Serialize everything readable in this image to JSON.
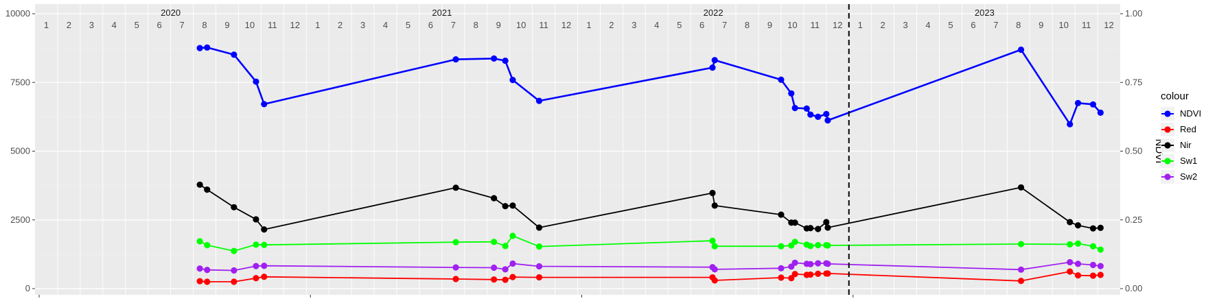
{
  "chart_data": {
    "type": "line",
    "ylim": [
      0,
      10000
    ],
    "y_ticks": [
      0,
      2500,
      5000,
      7500,
      10000
    ],
    "y_tick_labels": [
      "0",
      "2500",
      "5000",
      "7500",
      "10000"
    ],
    "y2_label": "NDVI",
    "y2_ticks": [
      0.0,
      0.25,
      0.5,
      0.75,
      1.0
    ],
    "y2_tick_labels": [
      "0.00",
      "0.25",
      "0.50",
      "0.75",
      "1.00"
    ],
    "y2_scale": 10000,
    "years": [
      "2020",
      "2021",
      "2022",
      "2023"
    ],
    "months": [
      "1",
      "2",
      "3",
      "4",
      "5",
      "6",
      "7",
      "8",
      "9",
      "10",
      "11",
      "12"
    ],
    "vline_date": "2023-01-01",
    "legend_title": "colour",
    "legend_position": "right",
    "grid": true,
    "series": [
      {
        "name": "NDVI",
        "color": "#0000ff",
        "axis": "right",
        "points": [
          [
            "2020-08-10",
            0.875
          ],
          [
            "2020-08-20",
            0.877
          ],
          [
            "2020-09-25",
            0.851
          ],
          [
            "2020-10-25",
            0.753
          ],
          [
            "2020-11-05",
            0.671
          ],
          [
            "2021-07-20",
            0.834
          ],
          [
            "2021-09-10",
            0.837
          ],
          [
            "2021-09-25",
            0.829
          ],
          [
            "2021-10-05",
            0.759
          ],
          [
            "2021-11-10",
            0.683
          ],
          [
            "2022-06-30",
            0.804
          ],
          [
            "2022-07-03",
            0.831
          ],
          [
            "2022-10-01",
            0.76
          ],
          [
            "2022-10-15",
            0.71
          ],
          [
            "2022-10-20",
            0.657
          ],
          [
            "2022-11-05",
            0.655
          ],
          [
            "2022-11-10",
            0.633
          ],
          [
            "2022-11-20",
            0.625
          ],
          [
            "2022-12-01",
            0.635
          ],
          [
            "2022-12-03",
            0.612
          ],
          [
            "2023-08-20",
            0.869
          ],
          [
            "2023-10-25",
            0.598
          ],
          [
            "2023-11-05",
            0.675
          ],
          [
            "2023-11-25",
            0.67
          ],
          [
            "2023-12-05",
            0.64
          ]
        ]
      },
      {
        "name": "Red",
        "color": "#ff0000",
        "axis": "left",
        "points": [
          [
            "2020-08-10",
            270
          ],
          [
            "2020-08-20",
            250
          ],
          [
            "2020-09-25",
            250
          ],
          [
            "2020-10-25",
            380
          ],
          [
            "2020-11-05",
            430
          ],
          [
            "2021-07-20",
            350
          ],
          [
            "2021-09-10",
            330
          ],
          [
            "2021-09-25",
            320
          ],
          [
            "2021-10-05",
            420
          ],
          [
            "2021-11-10",
            410
          ],
          [
            "2022-06-30",
            410
          ],
          [
            "2022-07-03",
            300
          ],
          [
            "2022-10-01",
            400
          ],
          [
            "2022-10-15",
            380
          ],
          [
            "2022-10-20",
            530
          ],
          [
            "2022-11-05",
            500
          ],
          [
            "2022-11-10",
            510
          ],
          [
            "2022-11-20",
            540
          ],
          [
            "2022-12-01",
            550
          ],
          [
            "2022-12-03",
            550
          ],
          [
            "2023-08-20",
            280
          ],
          [
            "2023-10-25",
            620
          ],
          [
            "2023-11-05",
            480
          ],
          [
            "2023-11-25",
            470
          ],
          [
            "2023-12-05",
            500
          ]
        ]
      },
      {
        "name": "Nir",
        "color": "#000000",
        "axis": "left",
        "points": [
          [
            "2020-08-10",
            3780
          ],
          [
            "2020-08-20",
            3600
          ],
          [
            "2020-09-25",
            2960
          ],
          [
            "2020-10-25",
            2520
          ],
          [
            "2020-11-05",
            2150
          ],
          [
            "2021-07-20",
            3670
          ],
          [
            "2021-09-10",
            3290
          ],
          [
            "2021-09-25",
            3000
          ],
          [
            "2021-10-05",
            3020
          ],
          [
            "2021-11-10",
            2220
          ],
          [
            "2022-06-30",
            3480
          ],
          [
            "2022-07-03",
            3020
          ],
          [
            "2022-10-01",
            2690
          ],
          [
            "2022-10-15",
            2400
          ],
          [
            "2022-10-20",
            2400
          ],
          [
            "2022-11-05",
            2190
          ],
          [
            "2022-11-10",
            2200
          ],
          [
            "2022-11-20",
            2170
          ],
          [
            "2022-12-01",
            2420
          ],
          [
            "2022-12-03",
            2220
          ],
          [
            "2023-08-20",
            3680
          ],
          [
            "2023-10-25",
            2420
          ],
          [
            "2023-11-05",
            2300
          ],
          [
            "2023-11-25",
            2190
          ],
          [
            "2023-12-05",
            2210
          ]
        ]
      },
      {
        "name": "Sw1",
        "color": "#00ff00",
        "axis": "left",
        "points": [
          [
            "2020-08-10",
            1720
          ],
          [
            "2020-08-20",
            1580
          ],
          [
            "2020-09-25",
            1370
          ],
          [
            "2020-10-25",
            1600
          ],
          [
            "2020-11-05",
            1590
          ],
          [
            "2021-07-20",
            1690
          ],
          [
            "2021-09-10",
            1700
          ],
          [
            "2021-09-25",
            1550
          ],
          [
            "2021-10-05",
            1920
          ],
          [
            "2021-11-10",
            1530
          ],
          [
            "2022-06-30",
            1740
          ],
          [
            "2022-07-03",
            1540
          ],
          [
            "2022-10-01",
            1540
          ],
          [
            "2022-10-15",
            1570
          ],
          [
            "2022-10-20",
            1700
          ],
          [
            "2022-11-05",
            1600
          ],
          [
            "2022-11-10",
            1550
          ],
          [
            "2022-11-20",
            1580
          ],
          [
            "2022-12-01",
            1580
          ],
          [
            "2022-12-03",
            1570
          ],
          [
            "2023-08-20",
            1620
          ],
          [
            "2023-10-25",
            1610
          ],
          [
            "2023-11-05",
            1640
          ],
          [
            "2023-11-25",
            1540
          ],
          [
            "2023-12-05",
            1420
          ]
        ]
      },
      {
        "name": "Sw2",
        "color": "#a020f0",
        "axis": "left",
        "points": [
          [
            "2020-08-10",
            730
          ],
          [
            "2020-08-20",
            680
          ],
          [
            "2020-09-25",
            660
          ],
          [
            "2020-10-25",
            820
          ],
          [
            "2020-11-05",
            830
          ],
          [
            "2021-07-20",
            770
          ],
          [
            "2021-09-10",
            760
          ],
          [
            "2021-09-25",
            700
          ],
          [
            "2021-10-05",
            910
          ],
          [
            "2021-11-10",
            810
          ],
          [
            "2022-06-30",
            780
          ],
          [
            "2022-07-03",
            700
          ],
          [
            "2022-10-01",
            740
          ],
          [
            "2022-10-15",
            800
          ],
          [
            "2022-10-20",
            940
          ],
          [
            "2022-11-05",
            900
          ],
          [
            "2022-11-10",
            890
          ],
          [
            "2022-11-20",
            920
          ],
          [
            "2022-12-01",
            920
          ],
          [
            "2022-12-03",
            900
          ],
          [
            "2023-08-20",
            690
          ],
          [
            "2023-10-25",
            960
          ],
          [
            "2023-11-05",
            900
          ],
          [
            "2023-11-25",
            860
          ],
          [
            "2023-12-05",
            820
          ]
        ]
      }
    ]
  }
}
